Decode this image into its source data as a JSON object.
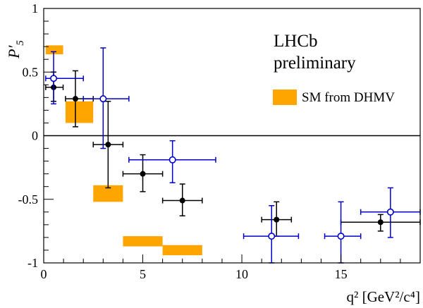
{
  "chart_data": {
    "type": "scatter",
    "ylabel": "P′",
    "ylabel_subscript": "5",
    "xlabel": "q² [GeV²/c⁴]",
    "xlim": [
      0,
      19
    ],
    "ylim": [
      -1,
      1
    ],
    "x_ticks": [
      0,
      5,
      10,
      15
    ],
    "y_ticks": [
      1,
      0.5,
      0,
      -0.5,
      -1
    ],
    "y_tick_labels": [
      "1",
      "0.5",
      "0",
      "-0.5",
      "-1"
    ],
    "annotations": {
      "line1": "LHCb",
      "line2": "preliminary"
    },
    "legend": {
      "label": "SM from DHMV",
      "color": "#ffa500",
      "placement": "right"
    },
    "series": [
      {
        "name": "black-filled",
        "color": "#000000",
        "marker": "filled-circle",
        "points": [
          {
            "x": 0.5,
            "xlo": 0.1,
            "xhi": 0.98,
            "y": 0.38,
            "ylo": 0.27,
            "yhi": 0.5
          },
          {
            "x": 1.6,
            "xlo": 1.1,
            "xhi": 2.5,
            "y": 0.29,
            "ylo": 0.07,
            "yhi": 0.51
          },
          {
            "x": 3.25,
            "xlo": 2.5,
            "xhi": 4.0,
            "y": -0.07,
            "ylo": -0.41,
            "yhi": 0.27
          },
          {
            "x": 5.0,
            "xlo": 4.0,
            "xhi": 6.0,
            "y": -0.3,
            "ylo": -0.44,
            "yhi": -0.15
          },
          {
            "x": 7.0,
            "xlo": 6.0,
            "xhi": 8.0,
            "y": -0.51,
            "ylo": -0.63,
            "yhi": -0.38
          },
          {
            "x": 11.75,
            "xlo": 11.0,
            "xhi": 12.5,
            "y": -0.66,
            "ylo": -0.79,
            "yhi": -0.52
          },
          {
            "x": 17.0,
            "xlo": 15.0,
            "xhi": 19.0,
            "y": -0.68,
            "ylo": -0.75,
            "yhi": -0.62
          }
        ]
      },
      {
        "name": "blue-open",
        "color": "#0000cc",
        "marker": "open-circle",
        "points": [
          {
            "x": 0.5,
            "xlo": 0.1,
            "xhi": 2.0,
            "y": 0.45,
            "ylo": 0.25,
            "yhi": 0.66
          },
          {
            "x": 3.0,
            "xlo": 2.0,
            "xhi": 4.3,
            "y": 0.29,
            "ylo": -0.1,
            "yhi": 0.69
          },
          {
            "x": 6.5,
            "xlo": 4.3,
            "xhi": 8.68,
            "y": -0.19,
            "ylo": -0.37,
            "yhi": -0.04
          },
          {
            "x": 11.5,
            "xlo": 10.09,
            "xhi": 12.86,
            "y": -0.79,
            "ylo": -1.0,
            "yhi": -0.55
          },
          {
            "x": 15.0,
            "xlo": 14.18,
            "xhi": 16.0,
            "y": -0.79,
            "ylo": -1.0,
            "yhi": -0.52
          },
          {
            "x": 17.5,
            "xlo": 16.0,
            "xhi": 19.0,
            "y": -0.6,
            "ylo": -0.8,
            "yhi": -0.41
          }
        ]
      }
    ],
    "sm_boxes": [
      {
        "xlo": 0.1,
        "xhi": 0.98,
        "ylo": 0.64,
        "yhi": 0.71
      },
      {
        "xlo": 1.1,
        "xhi": 2.5,
        "ylo": 0.1,
        "yhi": 0.27
      },
      {
        "xlo": 2.5,
        "xhi": 4.0,
        "ylo": -0.52,
        "yhi": -0.39
      },
      {
        "xlo": 4.0,
        "xhi": 6.0,
        "ylo": -0.87,
        "yhi": -0.79
      },
      {
        "xlo": 6.0,
        "xhi": 8.0,
        "ylo": -0.94,
        "yhi": -0.86
      }
    ]
  }
}
